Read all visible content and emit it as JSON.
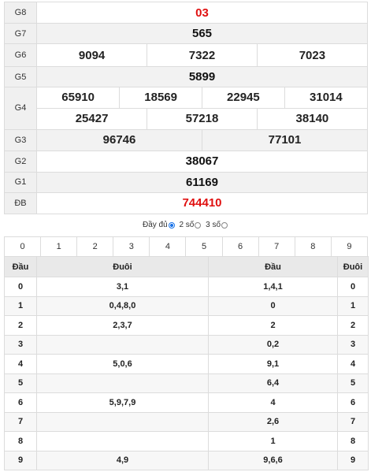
{
  "prizes": {
    "g8": {
      "label": "G8",
      "values": [
        "03"
      ]
    },
    "g7": {
      "label": "G7",
      "values": [
        "565"
      ]
    },
    "g6": {
      "label": "G6",
      "values": [
        "9094",
        "7322",
        "7023"
      ]
    },
    "g5": {
      "label": "G5",
      "values": [
        "5899"
      ]
    },
    "g4": {
      "label": "G4",
      "row1": [
        "65910",
        "18569",
        "22945",
        "31014"
      ],
      "row2": [
        "25427",
        "57218",
        "38140"
      ]
    },
    "g3": {
      "label": "G3",
      "values": [
        "96746",
        "77101"
      ]
    },
    "g2": {
      "label": "G2",
      "values": [
        "38067"
      ]
    },
    "g1": {
      "label": "G1",
      "values": [
        "61169"
      ]
    },
    "db": {
      "label": "ĐB",
      "values": [
        "744410"
      ]
    }
  },
  "filter": {
    "full": "Đầy đủ",
    "two": "2 số",
    "three": "3 số",
    "selected": "full"
  },
  "digit_buttons": [
    "0",
    "1",
    "2",
    "3",
    "4",
    "5",
    "6",
    "7",
    "8",
    "9"
  ],
  "dau_duoi": {
    "headers": [
      "Đầu",
      "Đuôi",
      "Đầu",
      "Đuôi"
    ],
    "rows": [
      [
        "0",
        "3,1",
        "1,4,1",
        "0"
      ],
      [
        "1",
        "0,4,8,0",
        "0",
        "1"
      ],
      [
        "2",
        "2,3,7",
        "2",
        "2"
      ],
      [
        "3",
        "",
        "0,2",
        "3"
      ],
      [
        "4",
        "5,0,6",
        "9,1",
        "4"
      ],
      [
        "5",
        "",
        "6,4",
        "5"
      ],
      [
        "6",
        "5,9,7,9",
        "4",
        "6"
      ],
      [
        "7",
        "",
        "2,6",
        "7"
      ],
      [
        "8",
        "",
        "1",
        "8"
      ],
      [
        "9",
        "4,9",
        "9,6,6",
        "9"
      ]
    ]
  },
  "colors": {
    "special": "#e01010",
    "radio_selected": "#1a73e8",
    "header_bg": "#e9e9e9"
  }
}
